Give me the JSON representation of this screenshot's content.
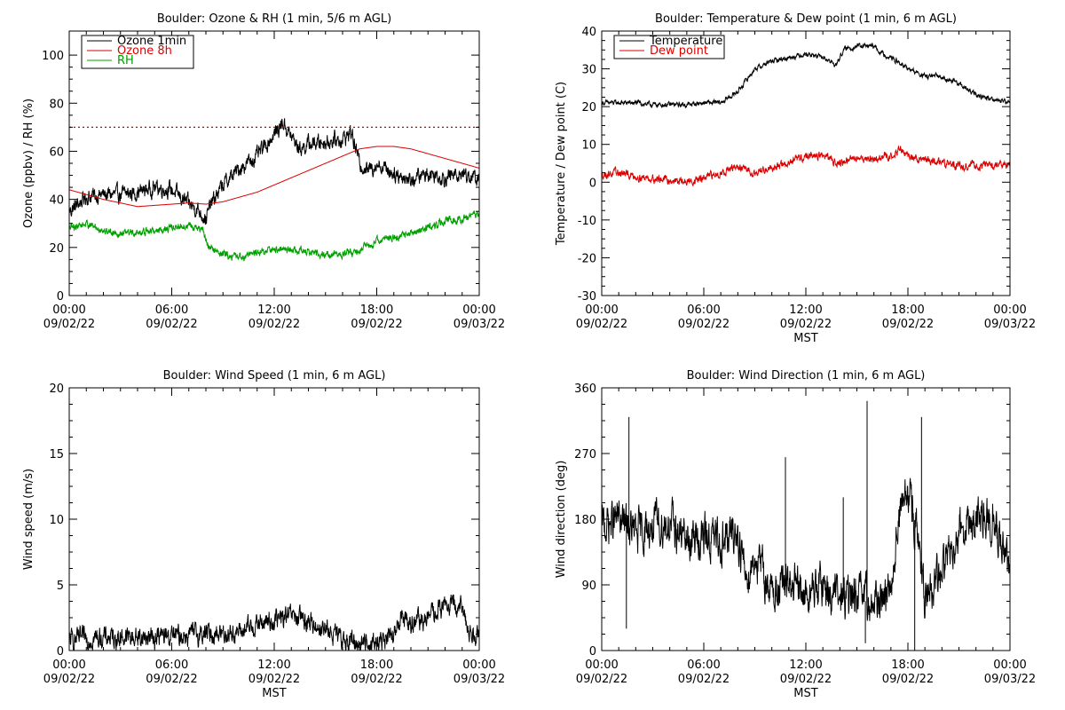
{
  "chart_data": [
    {
      "id": "ozone-rh",
      "type": "line",
      "title": "Boulder: Ozone & RH (1 min, 5/6 m AGL)",
      "ylabel": "Ozone (ppbv) / RH (%)",
      "xlabel": "",
      "xlim": [
        "00:00 09/02/22",
        "00:00 09/03/22"
      ],
      "xticks": [
        {
          "time": "00:00",
          "date": "09/02/22",
          "hour": 0
        },
        {
          "time": "06:00",
          "date": "09/02/22",
          "hour": 6
        },
        {
          "time": "12:00",
          "date": "09/02/22",
          "hour": 12
        },
        {
          "time": "18:00",
          "date": "09/02/22",
          "hour": 18
        },
        {
          "time": "00:00",
          "date": "09/03/22",
          "hour": 24
        }
      ],
      "ylim": [
        0,
        110
      ],
      "yticks": [
        0,
        20,
        40,
        60,
        80,
        100
      ],
      "legend_position": "top-left",
      "reference_line": {
        "y": 70,
        "color": "#cc0000",
        "style": "dotted"
      },
      "series": [
        {
          "name": "Ozone 1min",
          "color": "#000000",
          "noise": 2.5,
          "hours": [
            0,
            0.5,
            1,
            2,
            3,
            4,
            5,
            6,
            7,
            7.5,
            8,
            8.3,
            9,
            10,
            11,
            12,
            12.5,
            13,
            13.5,
            14,
            15,
            16,
            16.5,
            17,
            17.5,
            18,
            19,
            20,
            21,
            22,
            23,
            24
          ],
          "values": [
            35,
            38,
            41,
            42,
            42,
            43,
            45,
            44,
            38,
            36,
            32,
            38,
            46,
            53,
            58,
            67,
            72,
            66,
            61,
            63,
            64,
            65,
            68,
            55,
            52,
            55,
            51,
            48,
            51,
            49,
            51,
            48
          ]
        },
        {
          "name": "Ozone 8h",
          "color": "#dd0000",
          "noise": 0,
          "hours": [
            0,
            2,
            4,
            6,
            7,
            8,
            9,
            10,
            11,
            12,
            13,
            14,
            15,
            16,
            17,
            18,
            19,
            20,
            21,
            22,
            23,
            24
          ],
          "values": [
            44,
            40,
            37,
            38,
            38.5,
            38,
            39,
            41,
            43,
            46,
            49,
            52,
            55,
            58,
            61,
            62,
            62,
            61,
            59,
            57,
            55,
            53
          ]
        },
        {
          "name": "RH",
          "color": "#00a000",
          "noise": 1.2,
          "hours": [
            0,
            1,
            2,
            3,
            4,
            5,
            6,
            7,
            7.8,
            8.2,
            9,
            10,
            11,
            12,
            13,
            14,
            15,
            16,
            17,
            18,
            19,
            20,
            21,
            22,
            23,
            24
          ],
          "values": [
            28,
            30,
            27,
            26,
            26,
            27,
            28,
            29,
            27,
            20,
            17,
            16,
            18,
            19,
            19,
            18,
            17,
            17,
            19,
            23,
            24,
            26,
            28,
            31,
            32,
            34
          ]
        }
      ]
    },
    {
      "id": "temp-dew",
      "type": "line",
      "title": "Boulder: Temperature & Dew point (1 min, 6 m AGL)",
      "ylabel": "Temperature / Dew point (C)",
      "xlabel": "MST",
      "xlim": [
        "00:00 09/02/22",
        "00:00 09/03/22"
      ],
      "xticks": [
        {
          "time": "00:00",
          "date": "09/02/22",
          "hour": 0
        },
        {
          "time": "06:00",
          "date": "09/02/22",
          "hour": 6
        },
        {
          "time": "12:00",
          "date": "09/02/22",
          "hour": 12
        },
        {
          "time": "18:00",
          "date": "09/02/22",
          "hour": 18
        },
        {
          "time": "00:00",
          "date": "09/03/22",
          "hour": 24
        }
      ],
      "ylim": [
        -30,
        40
      ],
      "yticks": [
        -30,
        -20,
        -10,
        0,
        10,
        20,
        30,
        40
      ],
      "legend_position": "top-left",
      "series": [
        {
          "name": "Temperature",
          "color": "#000000",
          "noise": 0.5,
          "hours": [
            0,
            1,
            2,
            3,
            4,
            5,
            6,
            7,
            8,
            9,
            10,
            11,
            12,
            13,
            13.8,
            14.2,
            15,
            16,
            16.5,
            17,
            18,
            19,
            20,
            21,
            22,
            23,
            24
          ],
          "values": [
            21,
            21,
            21,
            20.5,
            20.5,
            20.5,
            21,
            21,
            24,
            30,
            32,
            33,
            34,
            33,
            31,
            35,
            36,
            36,
            34,
            33,
            30,
            28,
            28,
            26,
            23,
            22,
            21
          ]
        },
        {
          "name": "Dew point",
          "color": "#dd0000",
          "noise": 0.8,
          "hours": [
            0,
            1,
            2,
            3,
            4,
            5,
            6,
            7,
            8,
            9,
            10,
            11,
            12,
            13,
            14,
            15,
            16,
            17,
            17.5,
            18,
            19,
            20,
            21,
            22,
            23,
            24
          ],
          "values": [
            2,
            2.5,
            1.5,
            1,
            0.5,
            0,
            1,
            2.5,
            4,
            2.5,
            4,
            5,
            7,
            7,
            5,
            6.5,
            6,
            7,
            8.5,
            7,
            6,
            5,
            4.5,
            4.5,
            4.5,
            4.5
          ]
        }
      ]
    },
    {
      "id": "wind-speed",
      "type": "line",
      "title": "Boulder: Wind Speed (1 min, 6 m AGL)",
      "ylabel": "Wind speed (m/s)",
      "xlabel": "MST",
      "xlim": [
        "00:00 09/02/22",
        "00:00 09/03/22"
      ],
      "xticks": [
        {
          "time": "00:00",
          "date": "09/02/22",
          "hour": 0
        },
        {
          "time": "06:00",
          "date": "09/02/22",
          "hour": 6
        },
        {
          "time": "12:00",
          "date": "09/02/22",
          "hour": 12
        },
        {
          "time": "18:00",
          "date": "09/02/22",
          "hour": 18
        },
        {
          "time": "00:00",
          "date": "09/03/22",
          "hour": 24
        }
      ],
      "ylim": [
        0,
        20
      ],
      "yticks": [
        0,
        5,
        10,
        15,
        20
      ],
      "series": [
        {
          "color": "#000000",
          "noise": 0.6,
          "hours": [
            0,
            2,
            4,
            6,
            8,
            10,
            11,
            12,
            13,
            14,
            15,
            16,
            17,
            18,
            19,
            19.5,
            20,
            21,
            22,
            23,
            23.5,
            24
          ],
          "values": [
            0.8,
            1.0,
            1.0,
            1.1,
            1.3,
            1.4,
            2.0,
            2.3,
            2.6,
            2.2,
            1.6,
            0.8,
            0.6,
            0.6,
            1.0,
            2.8,
            2.0,
            2.5,
            3.5,
            3.2,
            1.2,
            1.5
          ]
        }
      ]
    },
    {
      "id": "wind-direction",
      "type": "line",
      "title": "Boulder: Wind Direction (1 min, 6 m AGL)",
      "ylabel": "Wind direction (deg)",
      "xlabel": "MST",
      "xlim": [
        "00:00 09/02/22",
        "00:00 09/03/22"
      ],
      "xticks": [
        {
          "time": "00:00",
          "date": "09/02/22",
          "hour": 0
        },
        {
          "time": "06:00",
          "date": "09/02/22",
          "hour": 6
        },
        {
          "time": "12:00",
          "date": "09/02/22",
          "hour": 12
        },
        {
          "time": "18:00",
          "date": "09/02/22",
          "hour": 18
        },
        {
          "time": "00:00",
          "date": "09/03/22",
          "hour": 24
        }
      ],
      "ylim": [
        0,
        360
      ],
      "yticks": [
        0,
        90,
        180,
        270,
        360
      ],
      "series": [
        {
          "color": "#000000",
          "noise": 22,
          "hours": [
            0,
            1,
            2,
            3,
            4,
            5,
            6,
            7,
            8,
            8.5,
            9,
            10,
            11,
            12,
            13,
            14,
            15,
            16,
            17,
            17.5,
            18,
            18.5,
            19,
            20,
            21,
            22,
            23,
            24
          ],
          "values": [
            170,
            180,
            160,
            170,
            175,
            150,
            155,
            150,
            160,
            100,
            130,
            80,
            90,
            75,
            90,
            70,
            75,
            60,
            90,
            190,
            215,
            170,
            60,
            110,
            170,
            175,
            180,
            100
          ],
          "spikes": [
            {
              "hour": 1.6,
              "value": 320
            },
            {
              "hour": 1.45,
              "value": 30
            },
            {
              "hour": 10.8,
              "value": 265
            },
            {
              "hour": 15.6,
              "value": 342
            },
            {
              "hour": 18.8,
              "value": 320
            },
            {
              "hour": 18.4,
              "value": 0
            },
            {
              "hour": 15.5,
              "value": 10
            },
            {
              "hour": 14.2,
              "value": 210
            }
          ]
        }
      ]
    }
  ]
}
